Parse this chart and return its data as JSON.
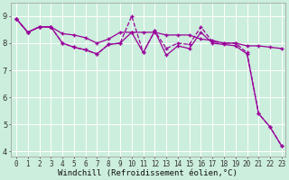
{
  "xlabel": "Windchill (Refroidissement éolien,°C)",
  "bg_color": "#cceedd",
  "grid_color": "#ffffff",
  "line_color": "#990099",
  "x_ticks": [
    0,
    1,
    2,
    3,
    4,
    5,
    6,
    7,
    8,
    9,
    10,
    11,
    12,
    13,
    14,
    15,
    16,
    17,
    18,
    19,
    20,
    21,
    22,
    23
  ],
  "y_ticks": [
    4,
    5,
    6,
    7,
    8,
    9
  ],
  "xlim": [
    0,
    23
  ],
  "ylim": [
    3.8,
    9.5
  ],
  "series1_x": [
    0,
    1,
    2,
    3,
    4,
    5,
    6,
    7,
    8,
    9,
    10,
    11,
    12,
    13,
    14,
    15,
    16,
    17,
    18,
    19,
    20,
    21,
    22,
    23
  ],
  "series1_y": [
    8.9,
    8.4,
    8.6,
    8.6,
    8.35,
    8.3,
    8.2,
    8.0,
    8.15,
    8.4,
    8.4,
    8.4,
    8.4,
    8.3,
    8.3,
    8.3,
    8.15,
    8.1,
    8.0,
    8.0,
    7.9,
    7.9,
    7.85,
    7.8
  ],
  "series2_x": [
    0,
    1,
    2,
    3,
    4,
    5,
    6,
    7,
    8,
    9,
    10,
    11,
    12,
    13,
    14,
    15,
    16,
    17,
    18,
    19,
    20,
    21,
    22,
    23
  ],
  "series2_y": [
    8.9,
    8.4,
    8.6,
    8.6,
    8.0,
    7.85,
    7.75,
    7.6,
    7.95,
    8.0,
    9.0,
    7.65,
    8.45,
    7.8,
    8.0,
    7.95,
    8.6,
    8.05,
    8.0,
    8.0,
    7.65,
    5.4,
    4.9,
    4.2
  ],
  "series3_x": [
    0,
    1,
    2,
    3,
    4,
    5,
    6,
    7,
    8,
    9,
    10,
    11,
    12,
    13,
    14,
    15,
    16,
    17,
    18,
    19,
    20,
    21,
    22,
    23
  ],
  "series3_y": [
    8.9,
    8.4,
    8.6,
    8.6,
    8.0,
    7.85,
    7.75,
    7.6,
    7.95,
    8.0,
    8.4,
    7.65,
    8.45,
    7.55,
    7.9,
    7.8,
    8.4,
    8.0,
    7.95,
    7.9,
    7.6,
    5.4,
    4.9,
    4.2
  ],
  "tick_fontsize": 5.5,
  "xlabel_fontsize": 6.5,
  "marker_size": 3,
  "line_width": 0.9
}
